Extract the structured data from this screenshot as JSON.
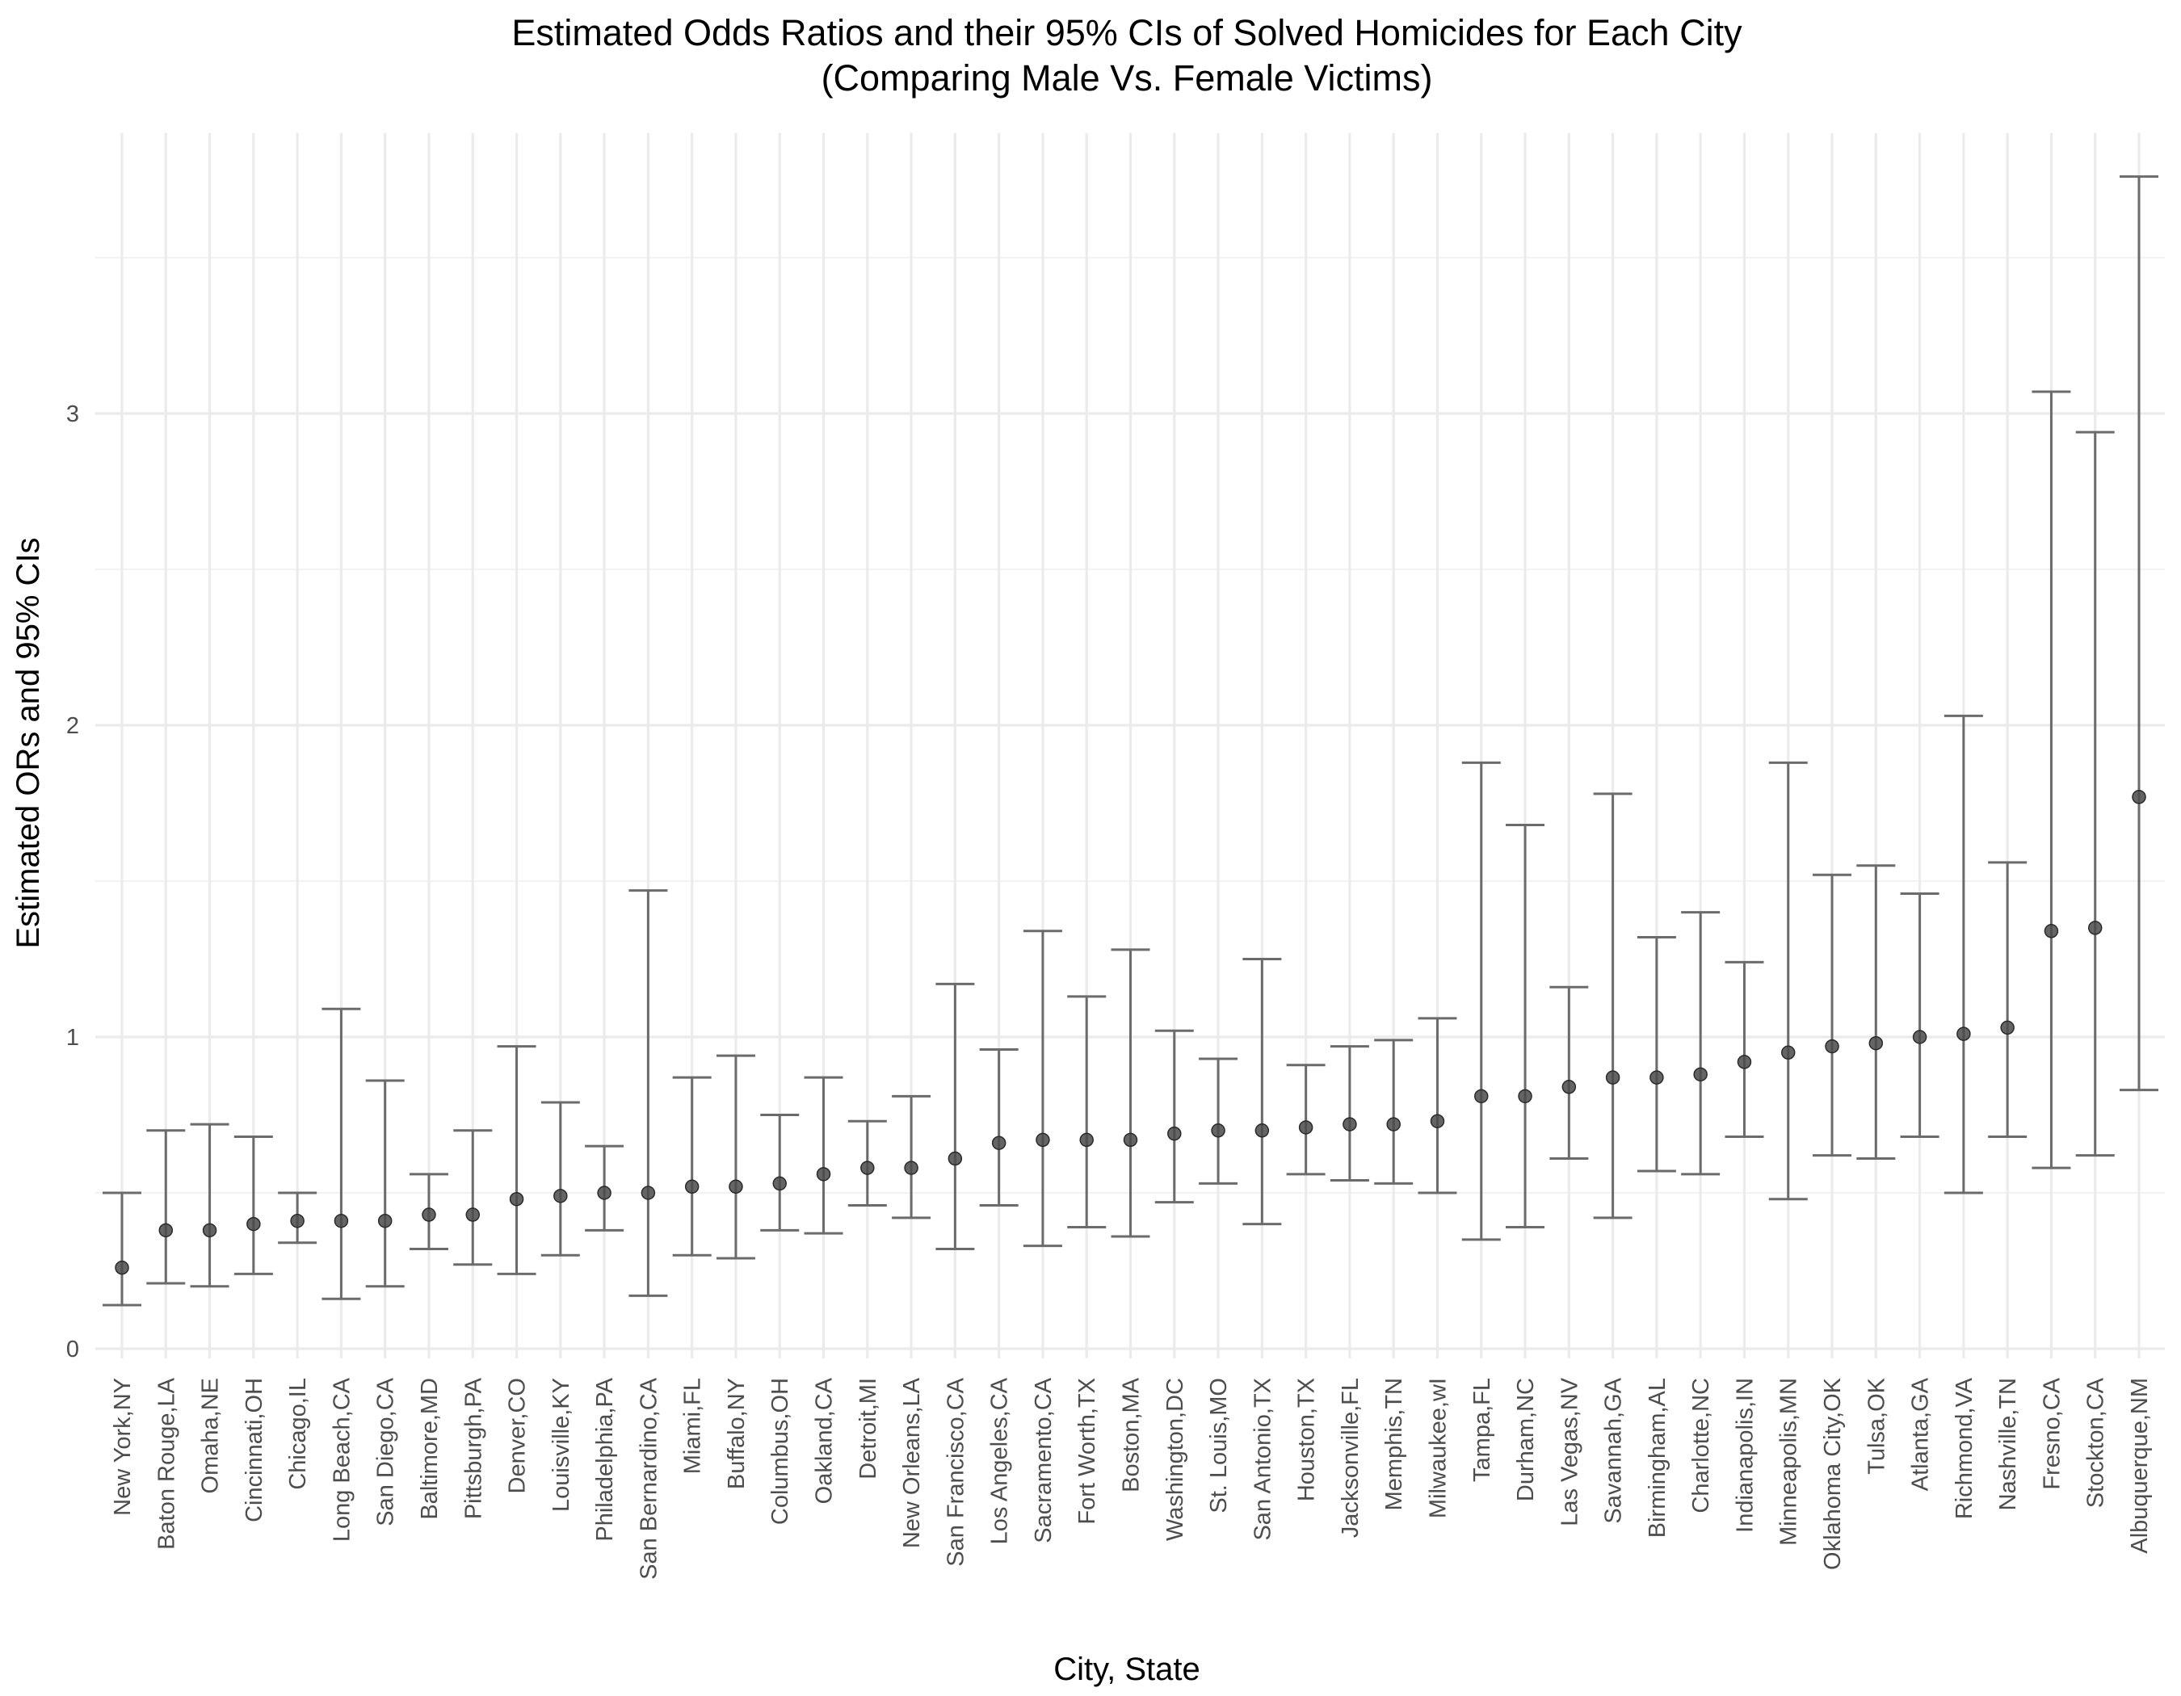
{
  "chart_data": {
    "type": "errorbar",
    "title": "Estimated Odds Ratios and their 95% CIs of Solved Homicides for Each City",
    "subtitle": "(Comparing Male Vs. Female Victims)",
    "xlabel": "City, State",
    "ylabel": "Estimated ORs and 95% CIs",
    "ylim": [
      0,
      3.9
    ],
    "y_ticks": [
      0,
      1,
      2,
      3
    ],
    "y_minor": [
      0.5,
      1.5,
      2.5,
      3.5
    ],
    "grid": true,
    "legend": "none",
    "points": [
      {
        "city": "New York,NY",
        "or": 0.26,
        "lower": 0.14,
        "upper": 0.5
      },
      {
        "city": "Baton Rouge,LA",
        "or": 0.38,
        "lower": 0.21,
        "upper": 0.7
      },
      {
        "city": "Omaha,NE",
        "or": 0.38,
        "lower": 0.2,
        "upper": 0.72
      },
      {
        "city": "Cincinnati,OH",
        "or": 0.4,
        "lower": 0.24,
        "upper": 0.68
      },
      {
        "city": "Chicago,IL",
        "or": 0.41,
        "lower": 0.34,
        "upper": 0.5
      },
      {
        "city": "Long Beach,CA",
        "or": 0.41,
        "lower": 0.16,
        "upper": 1.09
      },
      {
        "city": "San Diego,CA",
        "or": 0.41,
        "lower": 0.2,
        "upper": 0.86
      },
      {
        "city": "Baltimore,MD",
        "or": 0.43,
        "lower": 0.32,
        "upper": 0.56
      },
      {
        "city": "Pittsburgh,PA",
        "or": 0.43,
        "lower": 0.27,
        "upper": 0.7
      },
      {
        "city": "Denver,CO",
        "or": 0.48,
        "lower": 0.24,
        "upper": 0.97
      },
      {
        "city": "Louisville,KY",
        "or": 0.49,
        "lower": 0.3,
        "upper": 0.79
      },
      {
        "city": "Philadelphia,PA",
        "or": 0.5,
        "lower": 0.38,
        "upper": 0.65
      },
      {
        "city": "San Bernardino,CA",
        "or": 0.5,
        "lower": 0.17,
        "upper": 1.47
      },
      {
        "city": "Miami,FL",
        "or": 0.52,
        "lower": 0.3,
        "upper": 0.87
      },
      {
        "city": "Buffalo,NY",
        "or": 0.52,
        "lower": 0.29,
        "upper": 0.94
      },
      {
        "city": "Columbus,OH",
        "or": 0.53,
        "lower": 0.38,
        "upper": 0.75
      },
      {
        "city": "Oakland,CA",
        "or": 0.56,
        "lower": 0.37,
        "upper": 0.87
      },
      {
        "city": "Detroit,MI",
        "or": 0.58,
        "lower": 0.46,
        "upper": 0.73
      },
      {
        "city": "New Orleans,LA",
        "or": 0.58,
        "lower": 0.42,
        "upper": 0.81
      },
      {
        "city": "San Francisco,CA",
        "or": 0.61,
        "lower": 0.32,
        "upper": 1.17
      },
      {
        "city": "Los Angeles,CA",
        "or": 0.66,
        "lower": 0.46,
        "upper": 0.96
      },
      {
        "city": "Sacramento,CA",
        "or": 0.67,
        "lower": 0.33,
        "upper": 1.34
      },
      {
        "city": "Fort Worth,TX",
        "or": 0.67,
        "lower": 0.39,
        "upper": 1.13
      },
      {
        "city": "Boston,MA",
        "or": 0.67,
        "lower": 0.36,
        "upper": 1.28
      },
      {
        "city": "Washington,DC",
        "or": 0.69,
        "lower": 0.47,
        "upper": 1.02
      },
      {
        "city": "St. Louis,MO",
        "or": 0.7,
        "lower": 0.53,
        "upper": 0.93
      },
      {
        "city": "San Antonio,TX",
        "or": 0.7,
        "lower": 0.4,
        "upper": 1.25
      },
      {
        "city": "Houston,TX",
        "or": 0.71,
        "lower": 0.56,
        "upper": 0.91
      },
      {
        "city": "Jacksonville,FL",
        "or": 0.72,
        "lower": 0.54,
        "upper": 0.97
      },
      {
        "city": "Memphis,TN",
        "or": 0.72,
        "lower": 0.53,
        "upper": 0.99
      },
      {
        "city": "Milwaukee,wI",
        "or": 0.73,
        "lower": 0.5,
        "upper": 1.06
      },
      {
        "city": "Tampa,FL",
        "or": 0.81,
        "lower": 0.35,
        "upper": 1.88
      },
      {
        "city": "Durham,NC",
        "or": 0.81,
        "lower": 0.39,
        "upper": 1.68
      },
      {
        "city": "Las Vegas,NV",
        "or": 0.84,
        "lower": 0.61,
        "upper": 1.16
      },
      {
        "city": "Savannah,GA",
        "or": 0.87,
        "lower": 0.42,
        "upper": 1.78
      },
      {
        "city": "Birmingham,AL",
        "or": 0.87,
        "lower": 0.57,
        "upper": 1.32
      },
      {
        "city": "Charlotte,NC",
        "or": 0.88,
        "lower": 0.56,
        "upper": 1.4
      },
      {
        "city": "Indianapolis,IN",
        "or": 0.92,
        "lower": 0.68,
        "upper": 1.24
      },
      {
        "city": "Minneapolis,MN",
        "or": 0.95,
        "lower": 0.48,
        "upper": 1.88
      },
      {
        "city": "Oklahoma City,OK",
        "or": 0.97,
        "lower": 0.62,
        "upper": 1.52
      },
      {
        "city": "Tulsa,OK",
        "or": 0.98,
        "lower": 0.61,
        "upper": 1.55
      },
      {
        "city": "Atlanta,GA",
        "or": 1.0,
        "lower": 0.68,
        "upper": 1.46
      },
      {
        "city": "Richmond,VA",
        "or": 1.01,
        "lower": 0.5,
        "upper": 2.03
      },
      {
        "city": "Nashville,TN",
        "or": 1.03,
        "lower": 0.68,
        "upper": 1.56
      },
      {
        "city": "Fresno,CA",
        "or": 1.34,
        "lower": 0.58,
        "upper": 3.07
      },
      {
        "city": "Stockton,CA",
        "or": 1.35,
        "lower": 0.62,
        "upper": 2.94
      },
      {
        "city": "Albuquerque,NM",
        "or": 1.77,
        "lower": 0.83,
        "upper": 3.76
      }
    ]
  }
}
